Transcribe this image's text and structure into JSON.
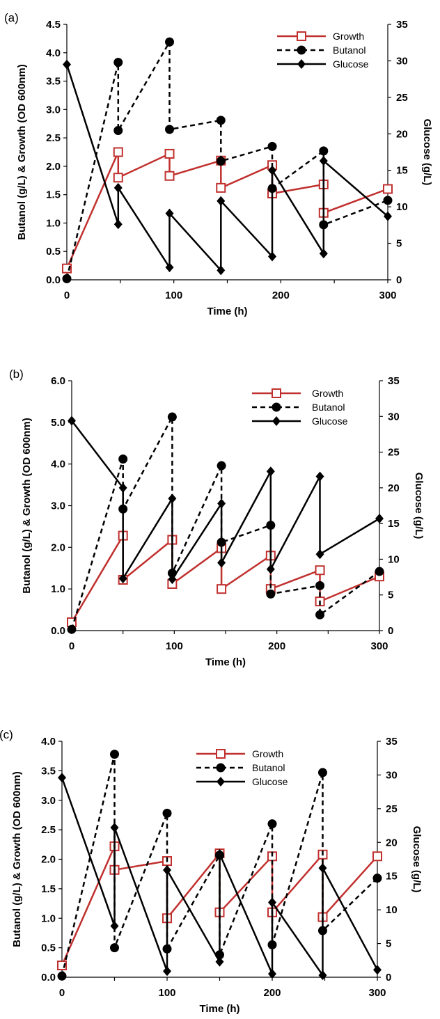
{
  "chart_data": [
    {
      "type": "line",
      "panel_label": "(a)",
      "xlabel": "Time (h)",
      "ylabel_left": "Butanol (g/L) & Growth (OD 600nm)",
      "ylabel_right": "Glucose (g/L)",
      "xlim": [
        0,
        300
      ],
      "ylim_left": [
        0,
        4.5
      ],
      "ylim_right": [
        0,
        35
      ],
      "xticks": [
        "0",
        "100",
        "200",
        "300"
      ],
      "yticks_left": [
        "0.0",
        "0.5",
        "1.0",
        "1.5",
        "2.0",
        "2.5",
        "3.0",
        "3.5",
        "4.0",
        "4.5"
      ],
      "yticks_right": [
        "0",
        "5",
        "10",
        "15",
        "20",
        "25",
        "30",
        "35"
      ],
      "legend_position": "top-right",
      "grid": false,
      "series": [
        {
          "name": "Growth",
          "axis": "left",
          "color": "#C0302E",
          "style": "solid",
          "marker": "open-square",
          "points": [
            [
              0,
              0.2
            ],
            [
              48,
              2.25
            ],
            [
              48,
              1.8
            ],
            [
              96,
              2.22
            ],
            [
              96,
              1.83
            ],
            [
              144,
              2.1
            ],
            [
              144,
              1.62
            ],
            [
              192,
              2.02
            ],
            [
              192,
              1.52
            ],
            [
              240,
              1.68
            ],
            [
              240,
              1.18
            ],
            [
              300,
              1.6
            ]
          ]
        },
        {
          "name": "Butanol",
          "axis": "left",
          "color": "#000000",
          "style": "dashed",
          "marker": "filled-circle",
          "points": [
            [
              0,
              0.02
            ],
            [
              48,
              3.83
            ],
            [
              48,
              2.63
            ],
            [
              96,
              4.19
            ],
            [
              96,
              2.65
            ],
            [
              144,
              2.81
            ],
            [
              144,
              2.09
            ],
            [
              192,
              2.35
            ],
            [
              192,
              1.61
            ],
            [
              240,
              2.27
            ],
            [
              240,
              0.97
            ],
            [
              300,
              1.4
            ]
          ]
        },
        {
          "name": "Glucose",
          "axis": "right",
          "color": "#000000",
          "style": "solid",
          "marker": "filled-diamond",
          "points": [
            [
              0,
              29.5
            ],
            [
              48,
              7.6
            ],
            [
              48,
              12.6
            ],
            [
              96,
              1.7
            ],
            [
              96,
              9.1
            ],
            [
              144,
              1.3
            ],
            [
              144,
              10.8
            ],
            [
              192,
              3.2
            ],
            [
              192,
              15.0
            ],
            [
              240,
              3.6
            ],
            [
              240,
              16.3
            ],
            [
              300,
              8.7
            ]
          ]
        }
      ]
    },
    {
      "type": "line",
      "panel_label": "(b)",
      "xlabel": "Time (h)",
      "ylabel_left": "Butanol (g/L) & Growth (OD 600nm)",
      "ylabel_right": "Glucose (g/L)",
      "xlim": [
        0,
        300
      ],
      "ylim_left": [
        0,
        6.0
      ],
      "ylim_right": [
        0,
        35
      ],
      "xticks": [
        "0",
        "100",
        "200",
        "300"
      ],
      "yticks_left": [
        "0.0",
        "1.0",
        "2.0",
        "3.0",
        "4.0",
        "5.0",
        "6.0"
      ],
      "yticks_right": [
        "0",
        "5",
        "10",
        "15",
        "20",
        "25",
        "30",
        "35"
      ],
      "legend_position": "top-right",
      "grid": false,
      "series": [
        {
          "name": "Growth",
          "axis": "left",
          "color": "#C0302E",
          "style": "solid",
          "marker": "open-square",
          "points": [
            [
              0,
              0.2
            ],
            [
              50,
              2.28
            ],
            [
              50,
              1.22
            ],
            [
              98,
              2.18
            ],
            [
              98,
              1.12
            ],
            [
              146,
              1.98
            ],
            [
              146,
              1.0
            ],
            [
              194,
              1.8
            ],
            [
              194,
              1.0
            ],
            [
              242,
              1.45
            ],
            [
              242,
              0.7
            ],
            [
              300,
              1.3
            ]
          ]
        },
        {
          "name": "Butanol",
          "axis": "left",
          "color": "#000000",
          "style": "dashed",
          "marker": "filled-circle",
          "points": [
            [
              0,
              0.03
            ],
            [
              50,
              4.12
            ],
            [
              50,
              2.92
            ],
            [
              98,
              5.13
            ],
            [
              98,
              1.38
            ],
            [
              146,
              3.96
            ],
            [
              146,
              2.12
            ],
            [
              194,
              2.53
            ],
            [
              194,
              0.88
            ],
            [
              242,
              1.08
            ],
            [
              242,
              0.38
            ],
            [
              300,
              1.42
            ]
          ]
        },
        {
          "name": "Glucose",
          "axis": "right",
          "color": "#000000",
          "style": "solid",
          "marker": "filled-diamond",
          "points": [
            [
              0,
              29.4
            ],
            [
              50,
              20.0
            ],
            [
              50,
              7.3
            ],
            [
              98,
              18.5
            ],
            [
              98,
              7.2
            ],
            [
              146,
              17.8
            ],
            [
              146,
              9.5
            ],
            [
              194,
              22.3
            ],
            [
              194,
              8.6
            ],
            [
              242,
              21.6
            ],
            [
              242,
              10.7
            ],
            [
              300,
              15.7
            ]
          ]
        }
      ]
    },
    {
      "type": "line",
      "panel_label": "(c)",
      "xlabel": "Time (h)",
      "ylabel_left": "Butanol (g/L) & Growth (OD 600nm)",
      "ylabel_right": "Glucose (g/L)",
      "xlim": [
        0,
        300
      ],
      "ylim_left": [
        0,
        4.0
      ],
      "ylim_right": [
        0,
        35
      ],
      "xticks": [
        "0",
        "100",
        "200",
        "300"
      ],
      "yticks_left": [
        "0.0",
        "0.5",
        "1.0",
        "1.5",
        "2.0",
        "2.5",
        "3.0",
        "3.5",
        "4.0"
      ],
      "yticks_right": [
        "0",
        "5",
        "10",
        "15",
        "20",
        "25",
        "30",
        "35"
      ],
      "legend_position": "top-center",
      "grid": false,
      "series": [
        {
          "name": "Growth",
          "axis": "left",
          "color": "#C0302E",
          "style": "solid",
          "marker": "open-square",
          "points": [
            [
              0,
              0.2
            ],
            [
              50,
              2.22
            ],
            [
              50,
              1.82
            ],
            [
              100,
              1.97
            ],
            [
              100,
              1.0
            ],
            [
              150,
              2.1
            ],
            [
              150,
              1.1
            ],
            [
              200,
              2.05
            ],
            [
              200,
              1.1
            ],
            [
              248,
              2.08
            ],
            [
              248,
              1.02
            ],
            [
              300,
              2.05
            ]
          ]
        },
        {
          "name": "Butanol",
          "axis": "left",
          "color": "#000000",
          "style": "dashed",
          "marker": "filled-circle",
          "points": [
            [
              0,
              0.02
            ],
            [
              50,
              3.78
            ],
            [
              50,
              0.5
            ],
            [
              100,
              2.78
            ],
            [
              100,
              0.48
            ],
            [
              150,
              2.07
            ],
            [
              150,
              0.38
            ],
            [
              200,
              2.6
            ],
            [
              200,
              0.55
            ],
            [
              248,
              3.47
            ],
            [
              248,
              0.79
            ],
            [
              300,
              1.68
            ]
          ]
        },
        {
          "name": "Glucose",
          "axis": "right",
          "color": "#000000",
          "style": "solid",
          "marker": "filled-diamond",
          "points": [
            [
              0,
              29.6
            ],
            [
              50,
              7.6
            ],
            [
              50,
              22.2
            ],
            [
              100,
              0.9
            ],
            [
              100,
              15.9
            ],
            [
              150,
              2.3
            ],
            [
              150,
              18.3
            ],
            [
              200,
              0.5
            ],
            [
              200,
              11.1
            ],
            [
              248,
              0.3
            ],
            [
              248,
              16.2
            ],
            [
              300,
              1.1
            ]
          ]
        }
      ]
    }
  ]
}
